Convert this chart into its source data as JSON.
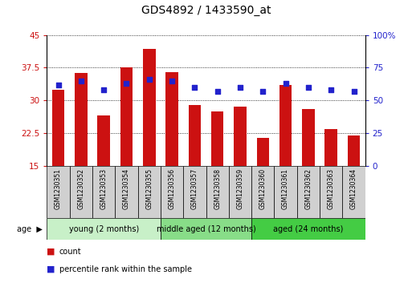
{
  "title": "GDS4892 / 1433590_at",
  "samples": [
    "GSM1230351",
    "GSM1230352",
    "GSM1230353",
    "GSM1230354",
    "GSM1230355",
    "GSM1230356",
    "GSM1230357",
    "GSM1230358",
    "GSM1230359",
    "GSM1230360",
    "GSM1230361",
    "GSM1230362",
    "GSM1230363",
    "GSM1230364"
  ],
  "counts": [
    32.5,
    36.2,
    26.5,
    37.5,
    41.8,
    36.5,
    29.0,
    27.5,
    28.5,
    21.5,
    33.5,
    28.0,
    23.5,
    22.0
  ],
  "percentiles": [
    62,
    65,
    58,
    63,
    66,
    65,
    60,
    57,
    60,
    57,
    63,
    60,
    58,
    57
  ],
  "ylim_left": [
    15,
    45
  ],
  "ylim_right": [
    0,
    100
  ],
  "yticks_left": [
    15,
    22.5,
    30,
    37.5,
    45
  ],
  "yticks_right": [
    0,
    25,
    50,
    75,
    100
  ],
  "bar_color": "#cc1111",
  "dot_color": "#2222cc",
  "sample_bg": "#d0d0d0",
  "groups": [
    {
      "label": "young (2 months)",
      "start": 0,
      "end": 5,
      "color": "#c8f0c8"
    },
    {
      "label": "middle aged (12 months)",
      "start": 5,
      "end": 9,
      "color": "#88dd88"
    },
    {
      "label": "aged (24 months)",
      "start": 9,
      "end": 14,
      "color": "#44cc44"
    }
  ],
  "legend_count": "count",
  "legend_percentile": "percentile rank within the sample",
  "title_fontsize": 10,
  "tick_fontsize": 7.5,
  "sample_fontsize": 5.5,
  "group_fontsize": 7,
  "legend_fontsize": 7
}
